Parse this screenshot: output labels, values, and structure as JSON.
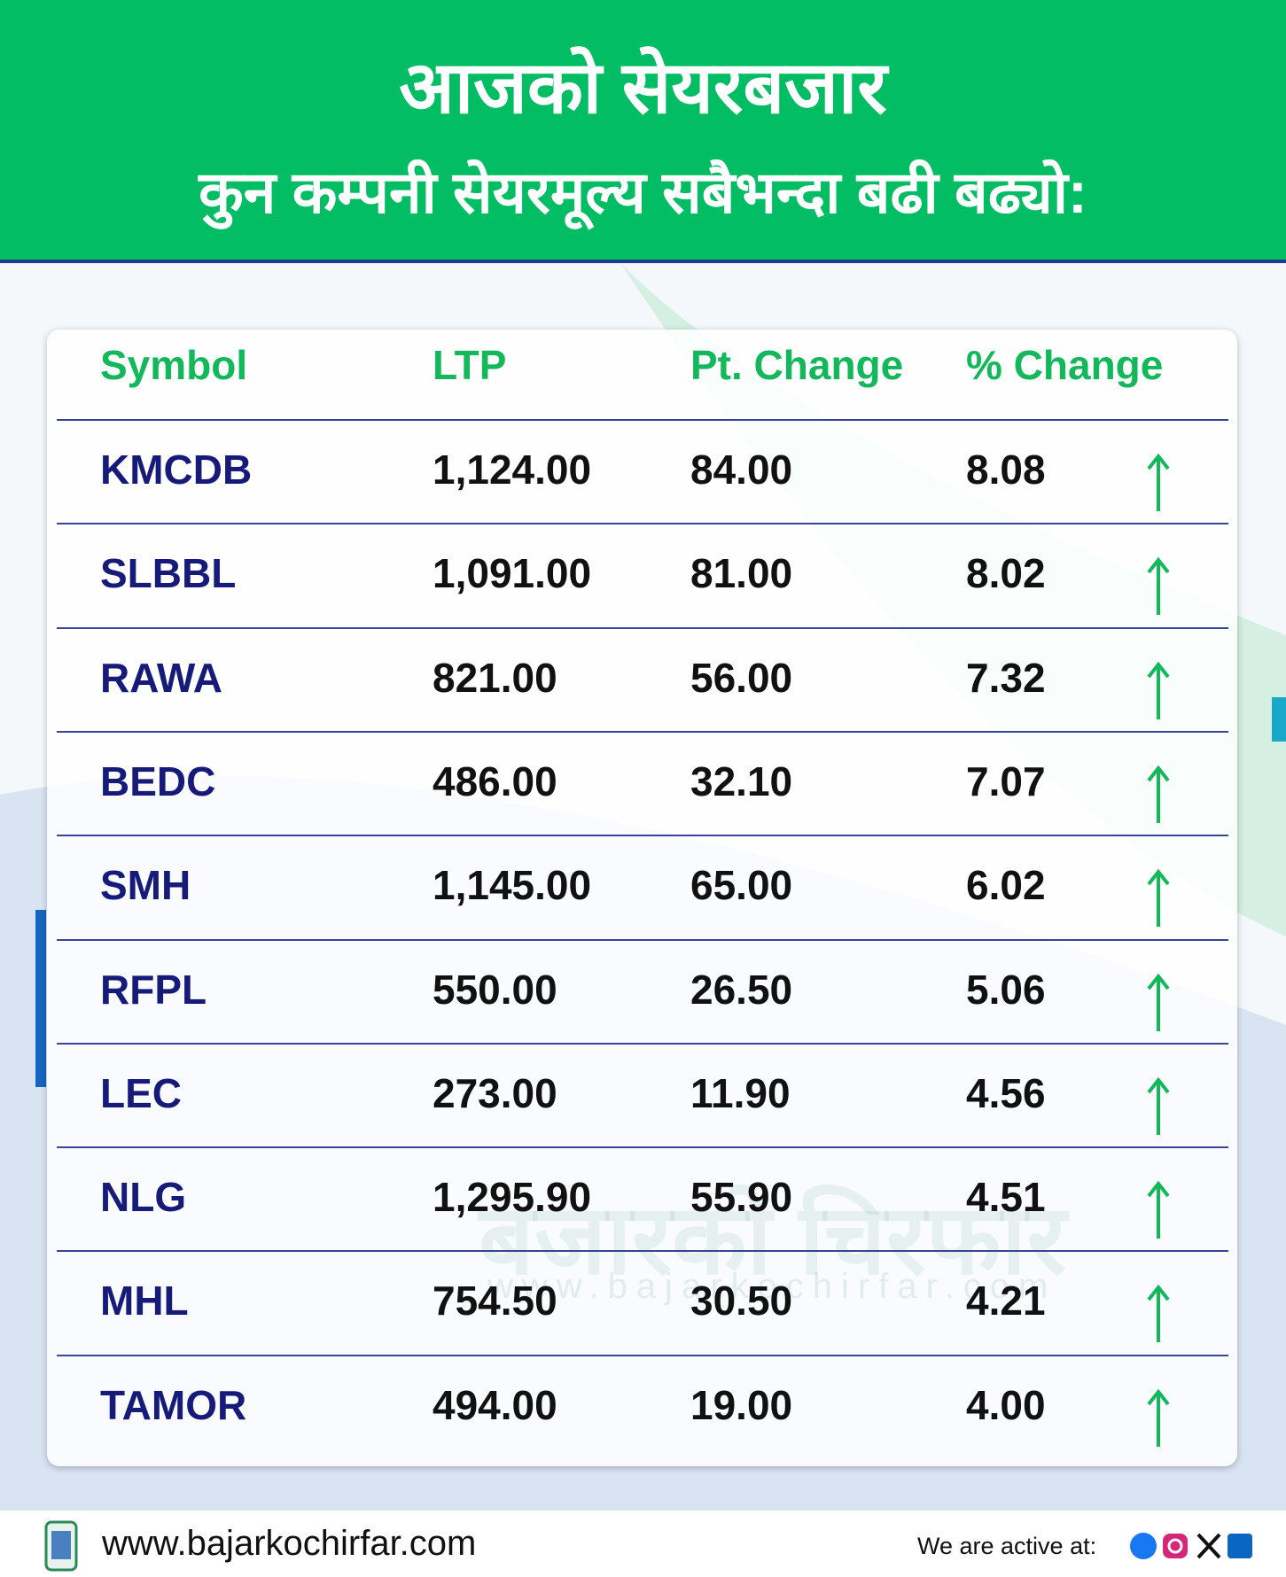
{
  "header": {
    "title": "आजको सेयरबजार",
    "subtitle": "कुन कम्पनी सेयरमूल्य सबैभन्दा बढी बढ्यो:"
  },
  "table": {
    "columns": [
      "Symbol",
      "LTP",
      "Pt. Change",
      "% Change"
    ],
    "rows": [
      [
        "KMCDB",
        "1,124.00",
        "84.00",
        "8.08"
      ],
      [
        "SLBBL",
        "1,091.00",
        "81.00",
        "8.02"
      ],
      [
        "RAWA",
        "821.00",
        "56.00",
        "7.32"
      ],
      [
        "BEDC",
        "486.00",
        "32.10",
        "7.07"
      ],
      [
        "SMH",
        "1,145.00",
        "65.00",
        "6.02"
      ],
      [
        "RFPL",
        "550.00",
        "26.50",
        "5.06"
      ],
      [
        "LEC",
        "273.00",
        "11.90",
        "4.56"
      ],
      [
        "NLG",
        "1,295.90",
        "55.90",
        "4.51"
      ],
      [
        "MHL",
        "754.50",
        "30.50",
        "4.21"
      ],
      [
        "TAMOR",
        "494.00",
        "19.00",
        "4.00"
      ]
    ]
  },
  "watermark": {
    "name": "बजारको चिरफार",
    "url": "www.bajarkochirfar.com"
  },
  "footer": {
    "website": "www.bajarkochirfar.com",
    "active_label": "We are active at:"
  }
}
